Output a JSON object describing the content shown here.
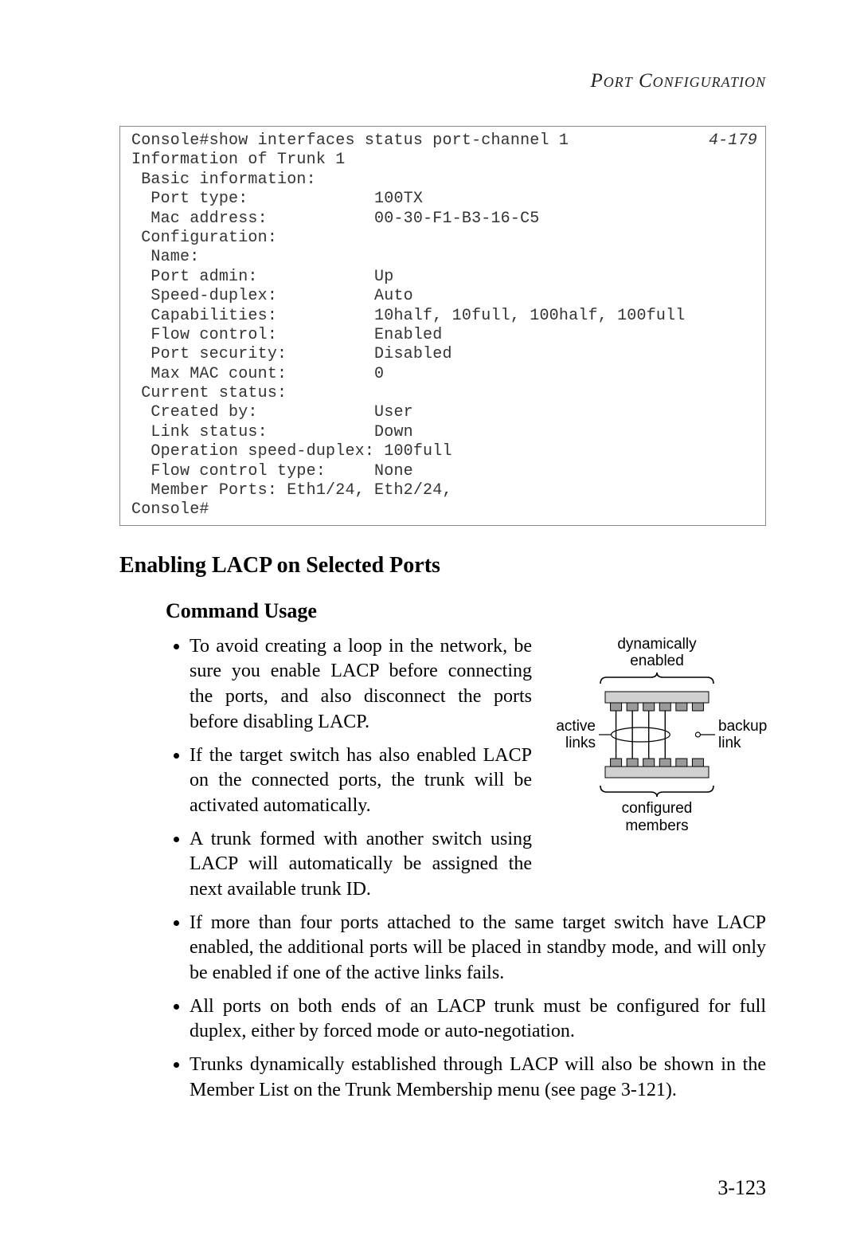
{
  "running_header": "Port Configuration",
  "console": {
    "ref": "4-179",
    "lines": [
      "Console#show interfaces status port-channel 1",
      "Information of Trunk 1",
      " Basic information:",
      "  Port type:             100TX",
      "  Mac address:           00-30-F1-B3-16-C5",
      " Configuration:",
      "  Name:",
      "  Port admin:            Up",
      "  Speed-duplex:          Auto",
      "  Capabilities:          10half, 10full, 100half, 100full",
      "  Flow control:          Enabled",
      "  Port security:         Disabled",
      "  Max MAC count:         0",
      " Current status:",
      "  Created by:            User",
      "  Link status:           Down",
      "  Operation speed-duplex: 100full",
      "  Flow control type:     None",
      "  Member Ports: Eth1/24, Eth2/24,",
      "Console#"
    ]
  },
  "section": {
    "title": "Enabling LACP on Selected Ports",
    "subtitle": "Command Usage"
  },
  "bullets_narrow": [
    "To avoid creating a loop in the network, be sure you enable LACP before connecting the ports, and also disconnect the ports before disabling LACP.",
    "If the target switch has also enabled LACP on the connected ports, the trunk will be activated automatically.",
    "A trunk formed with another switch using LACP will automatically be assigned the next available trunk ID."
  ],
  "bullets_wide": [
    "If more than four ports attached to the same target switch have LACP enabled, the additional ports will be placed in standby mode, and will only be enabled if one of the active links fails.",
    "All ports on both ends of an LACP trunk must be configured for full duplex, either by forced mode or auto-negotiation.",
    "Trunks dynamically established through LACP will also be shown in the Member List on the Trunk Membership menu (see page 3-121)."
  ],
  "diagram": {
    "top_label_line1": "dynamically",
    "top_label_line2": "enabled",
    "left_label_line1": "active",
    "left_label_line2": "links",
    "right_label_line1": "backup",
    "right_label_line2": "link",
    "bottom_label_line1": "configured",
    "bottom_label_line2": "members",
    "port_count": 6,
    "active_link_count": 4,
    "colors": {
      "stroke": "#000000",
      "switch_fill": "#d0d0d0",
      "port_fill": "#9a9a9a"
    }
  },
  "page_number": "3-123"
}
